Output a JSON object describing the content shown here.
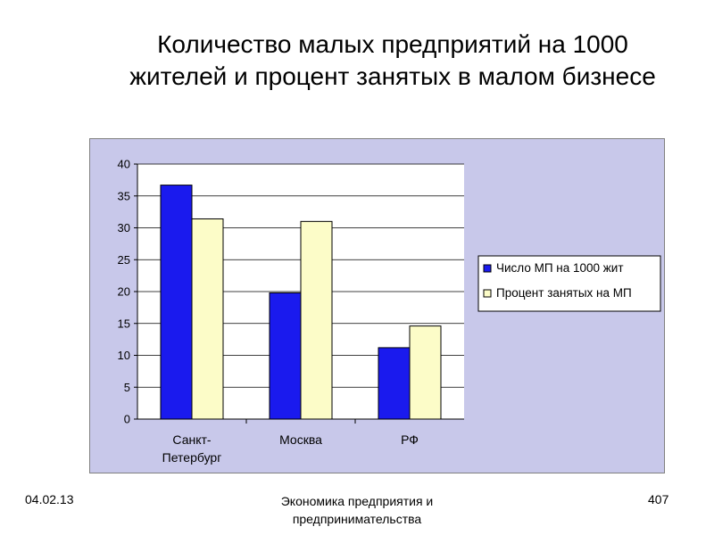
{
  "slide": {
    "title_line1": "Количество малых предприятий на  1000",
    "title_line2": "жителей и процент занятых в малом бизнесе"
  },
  "footer": {
    "date": "04.02.13",
    "center_line1": "Экономика предприятия и",
    "center_line2": "предпринимательства",
    "page": "407"
  },
  "chart_data": {
    "type": "bar",
    "categories": [
      [
        "Санкт-",
        "Петербург"
      ],
      [
        "Москва"
      ],
      [
        "РФ"
      ]
    ],
    "series": [
      {
        "name": "Число МП на 1000 жит",
        "values": [
          36.7,
          19.8,
          11.2
        ],
        "color": "#1a1aee"
      },
      {
        "name": "Процент  занятых на МП",
        "values": [
          31.4,
          31.0,
          14.6
        ],
        "color": "#fcfcc8"
      }
    ],
    "ylim": [
      0,
      40
    ],
    "yticks": [
      0,
      5,
      10,
      15,
      20,
      25,
      30,
      35,
      40
    ],
    "grid": true,
    "legend": "right",
    "background": "#c8c8ea",
    "plot_background": "#ffffff"
  }
}
